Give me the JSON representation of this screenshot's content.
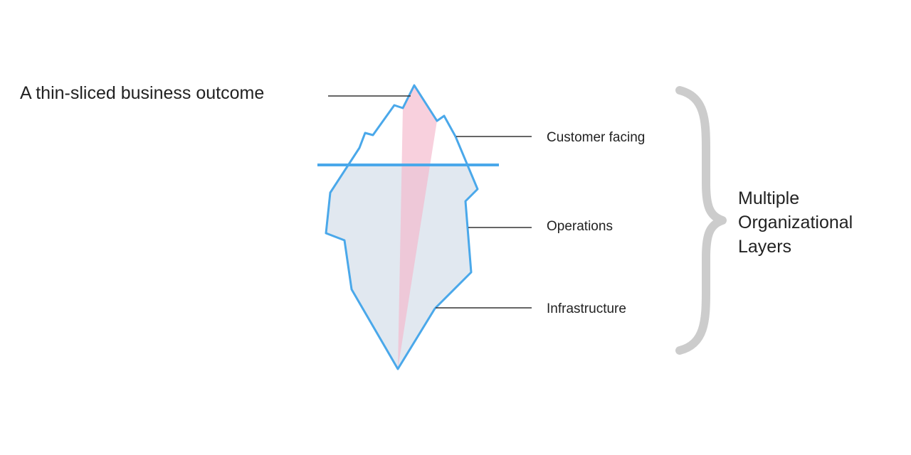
{
  "labels": {
    "outcome": "A thin-sliced business outcome",
    "customer_facing": "Customer facing",
    "operations": "Operations",
    "infrastructure": "Infrastructure"
  },
  "summary": {
    "lines": [
      "Multiple",
      "Organizational",
      "Layers"
    ]
  },
  "colors": {
    "outline": "#4aa8ea",
    "underwater_fill": "#e1e8f0",
    "slice_fill": "#f4b7cb",
    "leader_line": "#333333",
    "brace": "#cccccc",
    "text": "#222222"
  }
}
